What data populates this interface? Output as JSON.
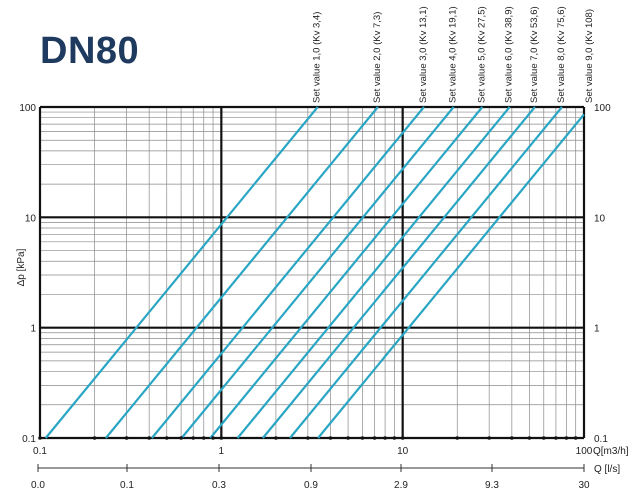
{
  "title": "DN80",
  "chart_data": {
    "type": "line",
    "scale": "log-log",
    "xlabel": "Q[m3/h]",
    "ylabel": "Δp [kPa]",
    "xlim": [
      0.1,
      100
    ],
    "ylim": [
      0.1,
      100
    ],
    "x_ticks": [
      "0.1",
      "1",
      "10",
      "100"
    ],
    "y_ticks": [
      "100",
      "10",
      "1",
      "0.1"
    ],
    "y_ticks_right": [
      "100",
      "10",
      "1",
      "0.1"
    ],
    "secondary_axis": {
      "label": "Q [l/s]",
      "ticks": [
        "0.0",
        "0.1",
        "0.3",
        "0.9",
        "2.9",
        "9.3",
        "30"
      ]
    },
    "grid": true,
    "series_color": "#2aa6c4",
    "series": [
      {
        "name": "Set value 1,0 (Kv 3,4)",
        "kv": 3.4
      },
      {
        "name": "Set value 2,0 (Kv 7,3)",
        "kv": 7.3
      },
      {
        "name": "Set value 3,0 (Kv 13,1)",
        "kv": 13.1
      },
      {
        "name": "Set value 4,0 (Kv 19,1)",
        "kv": 19.1
      },
      {
        "name": "Set value 5,0 (Kv 27,5)",
        "kv": 27.5
      },
      {
        "name": "Set value 6,0 (Kv 38,9)",
        "kv": 38.9
      },
      {
        "name": "Set value 7,0 (Kv 53,6)",
        "kv": 53.6
      },
      {
        "name": "Set value 8,0 (Kv 75,6)",
        "kv": 75.6
      },
      {
        "name": "Set value 9,0 (Kv 108)",
        "kv": 108
      }
    ]
  }
}
